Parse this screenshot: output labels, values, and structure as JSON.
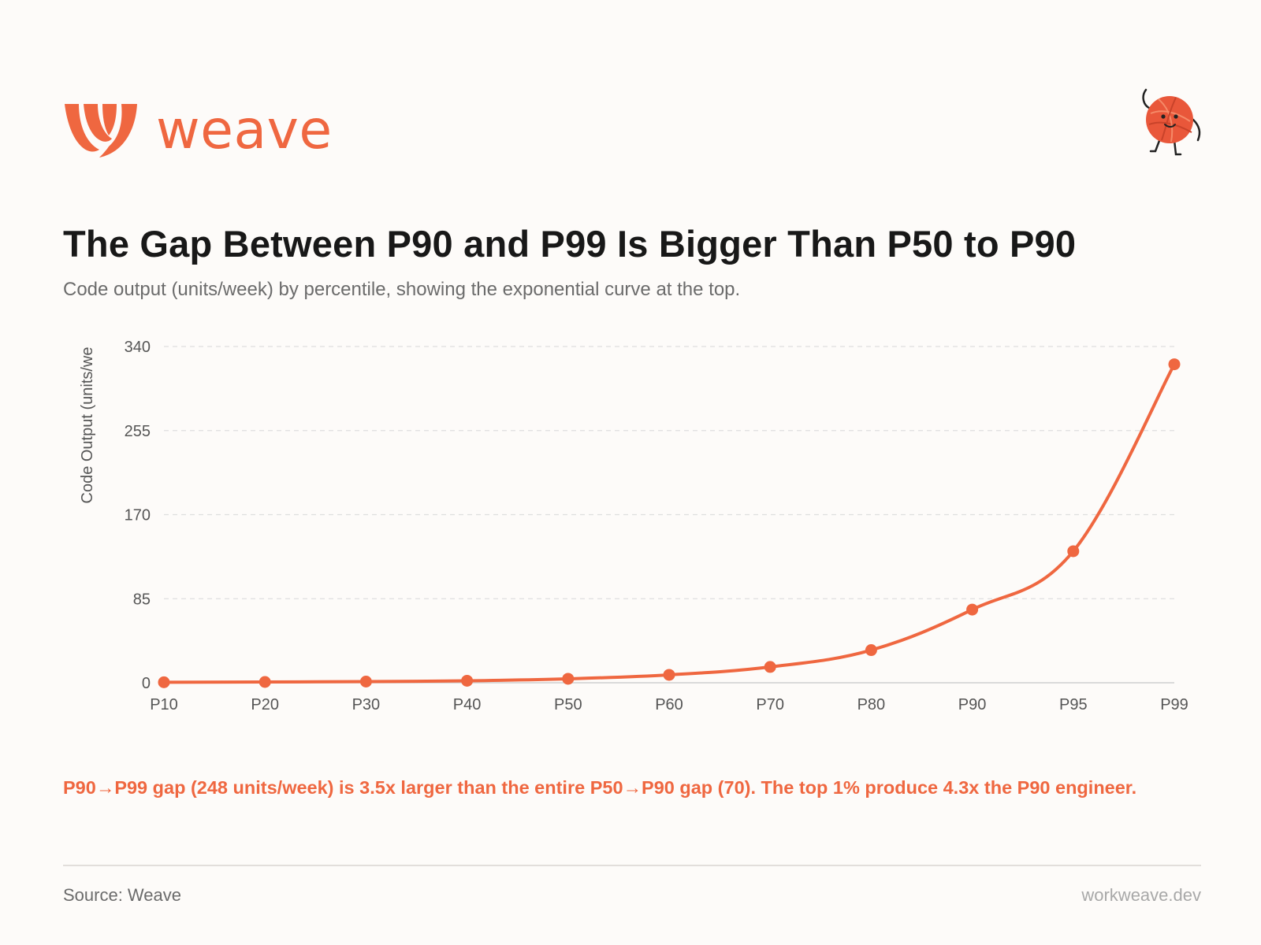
{
  "brand": {
    "name": "weave",
    "accent": "#ef6740",
    "logo_icon": "weave-logo-icon",
    "mascot_icon": "yarn-ball-mascot-icon"
  },
  "title": "The Gap Between P90 and P99 Is Bigger Than P50 to P90",
  "subtitle": "Code output (units/week) by percentile, showing the exponential curve at the top.",
  "insight": "P90→P99 gap (248 units/week) is 3.5x larger than the entire P50→P90 gap (70). The top 1% produce 4.3x the P90 engineer.",
  "footer": {
    "source": "Source: Weave",
    "site": "workweave.dev"
  },
  "chart_data": {
    "type": "line",
    "title": "The Gap Between P90 and P99 Is Bigger Than P50 to P90",
    "xlabel": "",
    "ylabel": "Code Output (units/we",
    "categories": [
      "P10",
      "P20",
      "P30",
      "P40",
      "P50",
      "P60",
      "P70",
      "P80",
      "P90",
      "P95",
      "P99"
    ],
    "series": [
      {
        "name": "Code output (units/week)",
        "values": [
          0.5,
          0.8,
          1.2,
          2,
          4,
          8,
          16,
          33,
          74,
          133,
          322
        ]
      }
    ],
    "yticks": [
      0,
      85,
      170,
      255,
      340
    ],
    "ylim": [
      0,
      340
    ],
    "grid": true,
    "color": "#ef6740"
  }
}
